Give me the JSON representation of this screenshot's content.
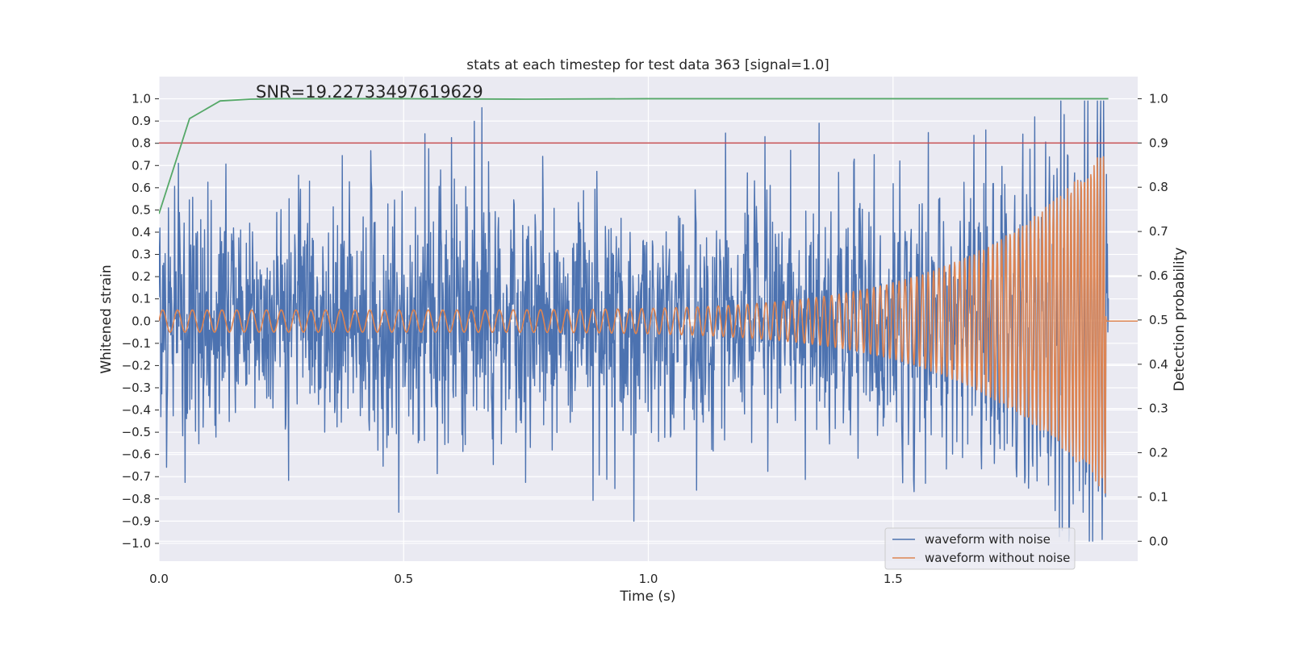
{
  "chart_data": {
    "type": "line",
    "title": "stats at each timestep for test data 363 [signal=1.0]",
    "annotation": "SNR=19.22733497619629",
    "xlabel": "Time (s)",
    "ylabel": "Whitened strain",
    "ylabel_right": "Detection probability",
    "xlim": [
      0.0,
      2.0
    ],
    "ylim": [
      -1.08,
      1.1
    ],
    "ylim_right": [
      -0.045,
      1.05
    ],
    "x_ticks": [
      "0.0",
      "0.5",
      "1.0",
      "1.5"
    ],
    "y_ticks": [
      "1.0",
      "0.9",
      "0.8",
      "0.7",
      "0.6",
      "0.5",
      "0.4",
      "0.3",
      "0.2",
      "0.1",
      "0.0",
      "−0.1",
      "−0.2",
      "−0.3",
      "−0.4",
      "−0.5",
      "−0.6",
      "−0.7",
      "−0.8",
      "−0.9",
      "−1.0"
    ],
    "y_ticks_right": [
      "1.0",
      "0.9",
      "0.8",
      "0.7",
      "0.6",
      "0.5",
      "0.4",
      "0.3",
      "0.2",
      "0.1",
      "0.0"
    ],
    "grid": true,
    "legend_position": "bottom-right",
    "series": [
      {
        "name": "waveform with noise",
        "color": "#4c72b0",
        "axis": "left",
        "kind": "noisy-strain",
        "noise_std": 0.27,
        "x_end": 1.94,
        "notable_peaks": [
          [
            0.04,
            0.71
          ],
          [
            0.66,
            0.96
          ],
          [
            0.49,
            -0.86
          ],
          [
            0.97,
            -0.9
          ],
          [
            1.69,
            0.86
          ],
          [
            1.84,
            -0.97
          ],
          [
            1.93,
            0.99
          ],
          [
            1.93,
            -0.79
          ]
        ]
      },
      {
        "name": "waveform without noise",
        "color": "#dd8452",
        "axis": "left",
        "kind": "chirp",
        "amplitude_start": 0.05,
        "amplitude_peak": 0.78,
        "frequency_start_hz": 33,
        "frequency_end_hz": 160,
        "merger_time": 1.935
      },
      {
        "color": "#55a868",
        "axis": "right",
        "kind": "probability",
        "x": [
          0.0,
          0.0625,
          0.125,
          0.1875,
          0.25,
          0.5,
          0.75,
          1.0,
          1.25,
          1.5,
          1.75,
          1.94
        ],
        "y": [
          0.74,
          0.955,
          0.995,
          0.999,
          1.0,
          1.0,
          0.999,
          1.0,
          1.0,
          1.0,
          1.0,
          1.0
        ]
      },
      {
        "color": "#c44e52",
        "axis": "right",
        "kind": "threshold",
        "value": 0.9
      }
    ]
  }
}
